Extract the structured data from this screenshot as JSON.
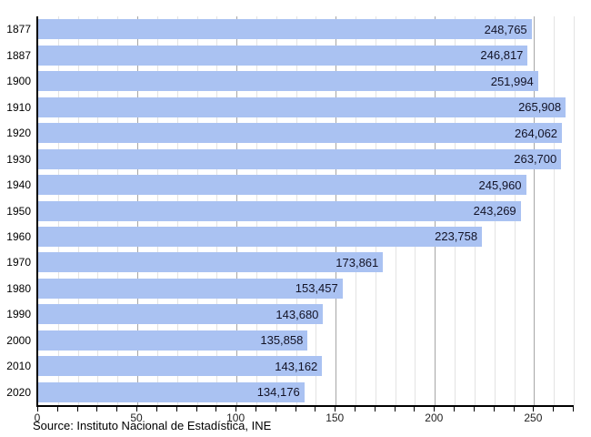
{
  "chart_data": {
    "type": "bar",
    "orientation": "horizontal",
    "title": "",
    "categories": [
      "1877",
      "1887",
      "1900",
      "1910",
      "1920",
      "1930",
      "1940",
      "1950",
      "1960",
      "1970",
      "1980",
      "1990",
      "2000",
      "2010",
      "2020"
    ],
    "values": [
      248765,
      246817,
      251994,
      265908,
      264062,
      263700,
      245960,
      243269,
      223758,
      173861,
      153457,
      143680,
      135858,
      143162,
      134176
    ],
    "value_labels": [
      "248,765",
      "246,817",
      "251,994",
      "265,908",
      "264,062",
      "263,700",
      "245,960",
      "243,269",
      "223,758",
      "173,861",
      "153,457",
      "143,680",
      "135,858",
      "143,162",
      "134,176"
    ],
    "x_axis": {
      "unit_divisor": 1000,
      "max": 270,
      "minor_tick_step": 10,
      "major_tick_step": 50,
      "tick_labels": [
        "0",
        "50",
        "100",
        "150",
        "200",
        "250"
      ],
      "tick_values": [
        0,
        50,
        100,
        150,
        200,
        250
      ]
    },
    "grid": {
      "minor_every": 10,
      "major_every": 50,
      "vertical": true,
      "horizontal": false
    },
    "legend": "none",
    "source_note": "Source: Instituto Nacional de Estadística, INE",
    "colors": {
      "bar": "#aac2f2",
      "value_label": "#131326",
      "category_label": "#000000",
      "tick_label": "#222222",
      "axis": "#000000",
      "grid_minor": "#e3e3e3",
      "grid_major": "#a6a6a6",
      "background": "#ffffff"
    }
  }
}
